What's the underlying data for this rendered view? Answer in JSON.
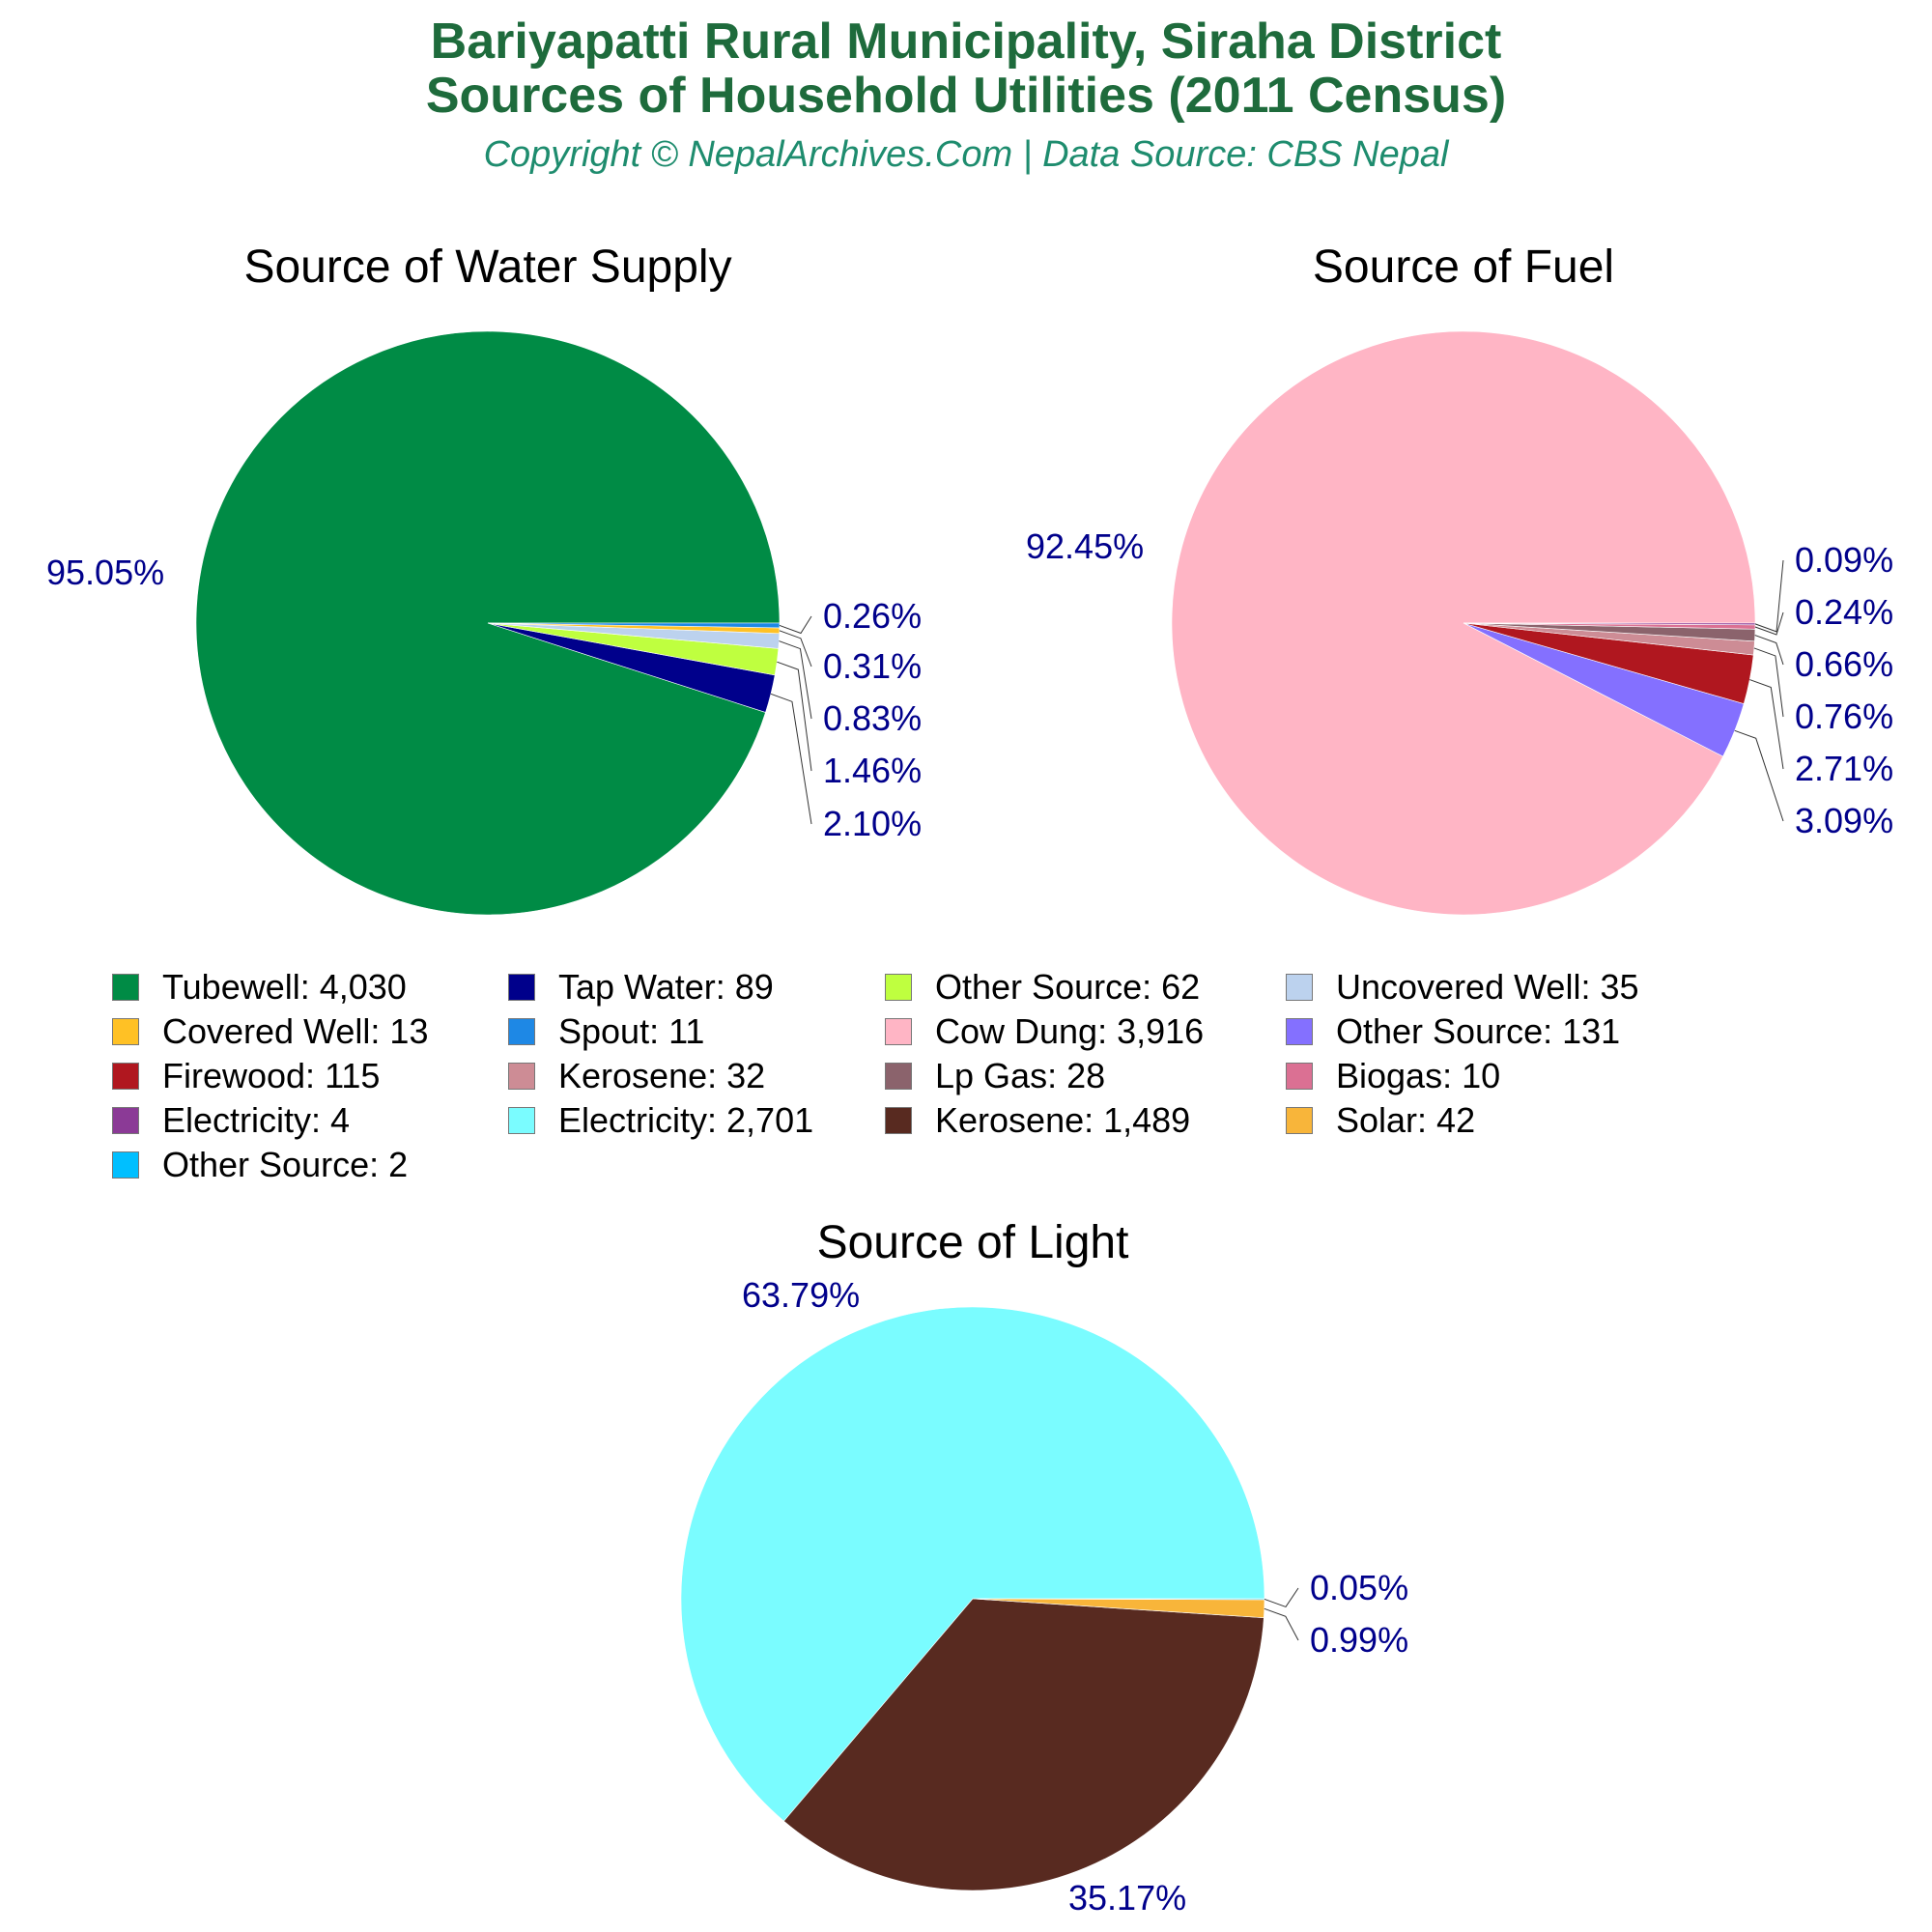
{
  "header": {
    "title_line1": "Bariyapatti Rural Municipality, Siraha District",
    "title_line2": "Sources of Household Utilities (2011 Census)",
    "subtitle": "Copyright © NepalArchives.Com | Data Source: CBS Nepal"
  },
  "colors": {
    "title": "#1e6b3c",
    "subtitle": "#1e8c6e",
    "percent_label": "#00008b"
  },
  "chart_data": [
    {
      "type": "pie",
      "title": "Source of Water Supply",
      "slices": [
        {
          "label": "Tubewell",
          "value": 4030,
          "display": "4,030",
          "percent": "95.05%",
          "color": "#008b45"
        },
        {
          "label": "Tap Water",
          "value": 89,
          "display": "89",
          "percent": "2.10%",
          "color": "#00008b"
        },
        {
          "label": "Other Source",
          "value": 62,
          "display": "62",
          "percent": "1.46%",
          "color": "#bfff3f"
        },
        {
          "label": "Uncovered Well",
          "value": 35,
          "display": "35",
          "percent": "0.83%",
          "color": "#bcd2ee"
        },
        {
          "label": "Covered Well",
          "value": 13,
          "display": "13",
          "percent": "0.31%",
          "color": "#ffc125"
        },
        {
          "label": "Spout",
          "value": 11,
          "display": "11",
          "percent": "0.26%",
          "color": "#1e88e5"
        }
      ]
    },
    {
      "type": "pie",
      "title": "Source of Fuel",
      "slices": [
        {
          "label": "Cow Dung",
          "value": 3916,
          "display": "3,916",
          "percent": "92.45%",
          "color": "#ffb5c5"
        },
        {
          "label": "Other Source",
          "value": 131,
          "display": "131",
          "percent": "3.09%",
          "color": "#8470ff"
        },
        {
          "label": "Firewood",
          "value": 115,
          "display": "115",
          "percent": "2.71%",
          "color": "#b0171f"
        },
        {
          "label": "Kerosene",
          "value": 32,
          "display": "32",
          "percent": "0.76%",
          "color": "#cd8c95"
        },
        {
          "label": "Lp Gas",
          "value": 28,
          "display": "28",
          "percent": "0.66%",
          "color": "#8b636c"
        },
        {
          "label": "Biogas",
          "value": 10,
          "display": "10",
          "percent": "0.24%",
          "color": "#db7093"
        },
        {
          "label": "Electricity",
          "value": 4,
          "display": "4",
          "percent": "0.09%",
          "color": "#8b3a96"
        }
      ]
    },
    {
      "type": "pie",
      "title": "Source of Light",
      "slices": [
        {
          "label": "Electricity",
          "value": 2701,
          "display": "2,701",
          "percent": "63.79%",
          "color": "#7afcff"
        },
        {
          "label": "Kerosene",
          "value": 1489,
          "display": "1,489",
          "percent": "35.17%",
          "color": "#582a20"
        },
        {
          "label": "Solar",
          "value": 42,
          "display": "42",
          "percent": "0.99%",
          "color": "#f8b53a"
        },
        {
          "label": "Other Source",
          "value": 2,
          "display": "2",
          "percent": "0.05%",
          "color": "#00bfff"
        }
      ]
    }
  ],
  "legend": [
    {
      "label": "Tubewell: 4,030",
      "color": "#008b45"
    },
    {
      "label": "Tap Water: 89",
      "color": "#00008b"
    },
    {
      "label": "Other Source: 62",
      "color": "#bfff3f"
    },
    {
      "label": "Uncovered Well: 35",
      "color": "#bcd2ee"
    },
    {
      "label": "Covered Well: 13",
      "color": "#ffc125"
    },
    {
      "label": "Spout: 11",
      "color": "#1e88e5"
    },
    {
      "label": "Cow Dung: 3,916",
      "color": "#ffb5c5"
    },
    {
      "label": "Other Source: 131",
      "color": "#8470ff"
    },
    {
      "label": "Firewood: 115",
      "color": "#b0171f"
    },
    {
      "label": "Kerosene: 32",
      "color": "#cd8c95"
    },
    {
      "label": "Lp Gas: 28",
      "color": "#8b636c"
    },
    {
      "label": "Biogas: 10",
      "color": "#db7093"
    },
    {
      "label": "Electricity: 4",
      "color": "#8b3a96"
    },
    {
      "label": "Electricity: 2,701",
      "color": "#7afcff"
    },
    {
      "label": "Kerosene: 1,489",
      "color": "#582a20"
    },
    {
      "label": "Solar: 42",
      "color": "#f8b53a"
    },
    {
      "label": "Other Source: 2",
      "color": "#00bfff"
    }
  ]
}
